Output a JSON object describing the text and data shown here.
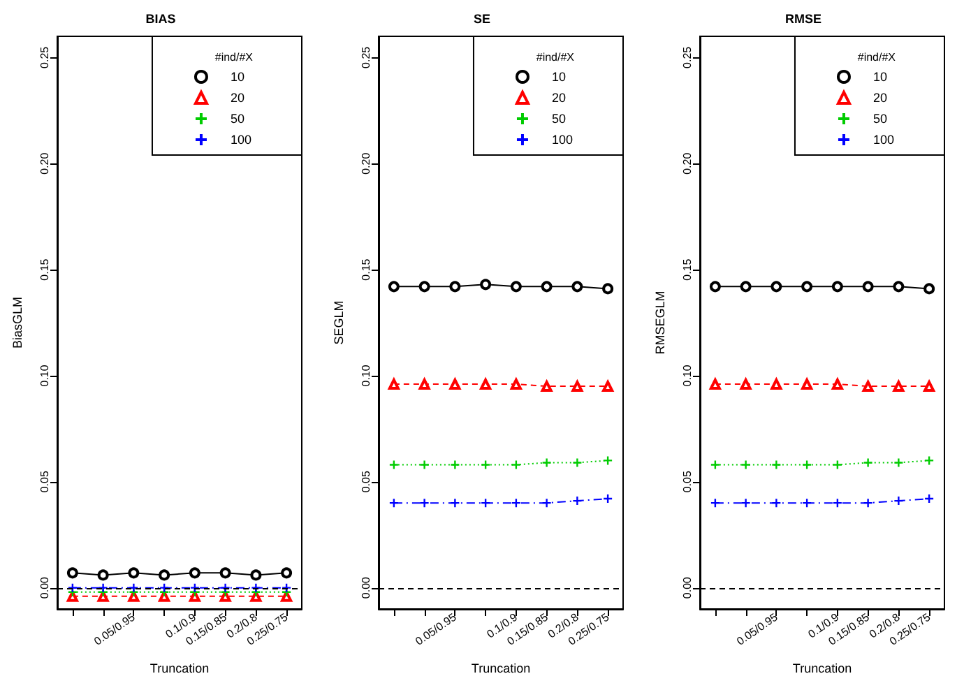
{
  "chart_data": [
    {
      "type": "line",
      "title": "BIAS",
      "xlabel": "Truncation",
      "ylabel": "BiasGLM",
      "legend_title": "#ind/#X",
      "legend": "top right",
      "grid": false,
      "categories": [
        null,
        null,
        "0.05/0.95",
        null,
        "0.1/0.9",
        "0.15/0.85",
        "0.2/0.8",
        "0.25/0.75"
      ],
      "ylim": [
        -0.01,
        0.26
      ],
      "yticks": [
        {
          "value": 0,
          "label": "0.00"
        },
        {
          "value": 0.05,
          "label": "0.05"
        },
        {
          "value": 0.1,
          "label": "0.10"
        },
        {
          "value": 0.15,
          "label": "0.15"
        },
        {
          "value": 0.2,
          "label": "0.20"
        },
        {
          "value": 0.25,
          "label": "0.25"
        }
      ],
      "ref_lines": [
        {
          "axis": "y",
          "value": 0,
          "color": "#000000",
          "line_style": "dashed"
        }
      ],
      "series": [
        {
          "name": "10",
          "color": "#000000",
          "marker": "circle",
          "line_style": "solid",
          "values": [
            0.007,
            0.006,
            0.007,
            0.006,
            0.007,
            0.007,
            0.006,
            0.007
          ]
        },
        {
          "name": "20",
          "color": "#ff0000",
          "marker": "triangle",
          "line_style": "dashed",
          "values": [
            -0.004,
            -0.004,
            -0.004,
            -0.004,
            -0.004,
            -0.004,
            -0.004,
            -0.004
          ]
        },
        {
          "name": "50",
          "color": "#00cc00",
          "marker": "cross",
          "line_style": "dotted",
          "values": [
            -0.002,
            -0.002,
            -0.002,
            -0.002,
            -0.002,
            -0.002,
            -0.002,
            -0.002
          ]
        },
        {
          "name": "100",
          "color": "#0000ff",
          "marker": "cross",
          "line_style": "dashdot",
          "values": [
            0.0,
            0.0,
            0.0,
            0.0,
            0.0,
            0.0,
            0.0,
            0.0
          ]
        }
      ]
    },
    {
      "type": "line",
      "title": "SE",
      "xlabel": "Truncation",
      "ylabel": "SEGLM",
      "legend_title": "#ind/#X",
      "legend": "top right",
      "grid": false,
      "categories": [
        null,
        null,
        "0.05/0.95",
        null,
        "0.1/0.9",
        "0.15/0.85",
        "0.2/0.8",
        "0.25/0.75"
      ],
      "ylim": [
        -0.01,
        0.26
      ],
      "yticks": [
        {
          "value": 0,
          "label": "0.00"
        },
        {
          "value": 0.05,
          "label": "0.05"
        },
        {
          "value": 0.1,
          "label": "0.10"
        },
        {
          "value": 0.15,
          "label": "0.15"
        },
        {
          "value": 0.2,
          "label": "0.20"
        },
        {
          "value": 0.25,
          "label": "0.25"
        }
      ],
      "ref_lines": [
        {
          "axis": "y",
          "value": 0,
          "color": "#000000",
          "line_style": "dashed"
        }
      ],
      "series": [
        {
          "name": "10",
          "color": "#000000",
          "marker": "circle",
          "line_style": "solid",
          "values": [
            0.142,
            0.142,
            0.142,
            0.143,
            0.142,
            0.142,
            0.142,
            0.141
          ]
        },
        {
          "name": "20",
          "color": "#ff0000",
          "marker": "triangle",
          "line_style": "dashed",
          "values": [
            0.096,
            0.096,
            0.096,
            0.096,
            0.096,
            0.095,
            0.095,
            0.095
          ]
        },
        {
          "name": "50",
          "color": "#00cc00",
          "marker": "cross",
          "line_style": "dotted",
          "values": [
            0.058,
            0.058,
            0.058,
            0.058,
            0.058,
            0.059,
            0.059,
            0.06
          ]
        },
        {
          "name": "100",
          "color": "#0000ff",
          "marker": "cross",
          "line_style": "dashdot",
          "values": [
            0.04,
            0.04,
            0.04,
            0.04,
            0.04,
            0.04,
            0.041,
            0.042
          ]
        }
      ]
    },
    {
      "type": "line",
      "title": "RMSE",
      "xlabel": "Truncation",
      "ylabel": "RMSEGLM",
      "legend_title": "#ind/#X",
      "legend": "top right",
      "grid": false,
      "categories": [
        null,
        null,
        "0.05/0.95",
        null,
        "0.1/0.9",
        "0.15/0.85",
        "0.2/0.8",
        "0.25/0.75"
      ],
      "ylim": [
        -0.01,
        0.26
      ],
      "yticks": [
        {
          "value": 0,
          "label": "0.00"
        },
        {
          "value": 0.05,
          "label": "0.05"
        },
        {
          "value": 0.1,
          "label": "0.10"
        },
        {
          "value": 0.15,
          "label": "0.15"
        },
        {
          "value": 0.2,
          "label": "0.20"
        },
        {
          "value": 0.25,
          "label": "0.25"
        }
      ],
      "ref_lines": [
        {
          "axis": "y",
          "value": 0,
          "color": "#000000",
          "line_style": "dashed"
        }
      ],
      "series": [
        {
          "name": "10",
          "color": "#000000",
          "marker": "circle",
          "line_style": "solid",
          "values": [
            0.142,
            0.142,
            0.142,
            0.142,
            0.142,
            0.142,
            0.142,
            0.141
          ]
        },
        {
          "name": "20",
          "color": "#ff0000",
          "marker": "triangle",
          "line_style": "dashed",
          "values": [
            0.096,
            0.096,
            0.096,
            0.096,
            0.096,
            0.095,
            0.095,
            0.095
          ]
        },
        {
          "name": "50",
          "color": "#00cc00",
          "marker": "cross",
          "line_style": "dotted",
          "values": [
            0.058,
            0.058,
            0.058,
            0.058,
            0.058,
            0.059,
            0.059,
            0.06
          ]
        },
        {
          "name": "100",
          "color": "#0000ff",
          "marker": "cross",
          "line_style": "dashdot",
          "values": [
            0.04,
            0.04,
            0.04,
            0.04,
            0.04,
            0.04,
            0.041,
            0.042
          ]
        }
      ]
    }
  ]
}
